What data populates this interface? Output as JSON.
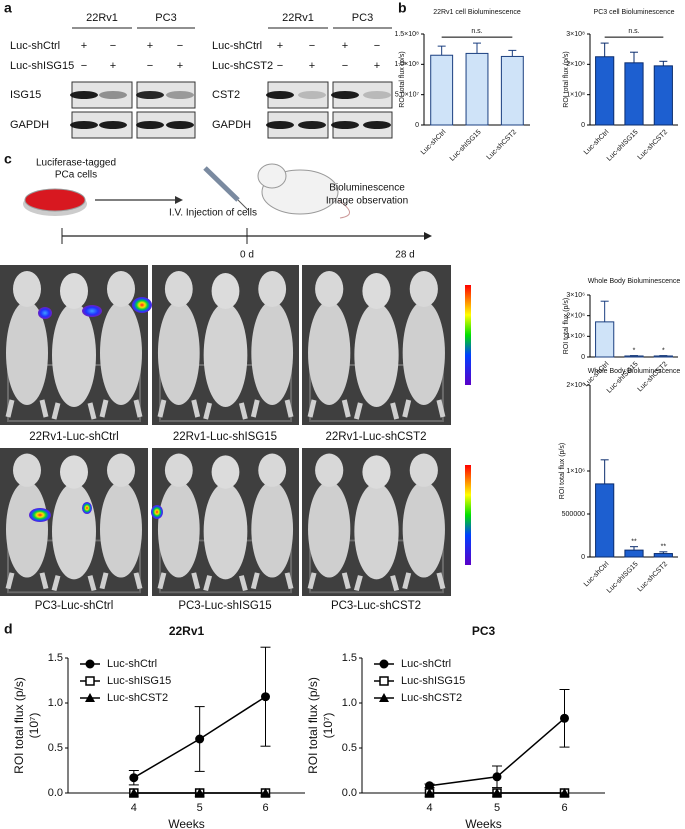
{
  "figure": {
    "panel_labels": [
      "a",
      "b",
      "c",
      "d"
    ],
    "blots": [
      {
        "groups": [
          "22Rv1",
          "PC3"
        ],
        "rows": [
          {
            "name": "Luc-shCtrl",
            "marks": [
              "+",
              "−",
              "+",
              "−"
            ]
          },
          {
            "name": "Luc-shISG15",
            "marks": [
              "−",
              "+",
              "−",
              "+"
            ]
          }
        ],
        "bands": [
          "ISG15",
          "GAPDH"
        ]
      },
      {
        "groups": [
          "22Rv1",
          "PC3"
        ],
        "rows": [
          {
            "name": "Luc-shCtrl",
            "marks": [
              "+",
              "−",
              "+",
              "−"
            ]
          },
          {
            "name": "Luc-shCST2",
            "marks": [
              "−",
              "+",
              "−",
              "+"
            ]
          }
        ],
        "bands": [
          "CST2",
          "GAPDH"
        ]
      }
    ],
    "schematic": {
      "cells": [
        "Luciferase-tagged",
        "PCa cells"
      ],
      "injection": "I.V. Injection of cells",
      "observation": [
        "Bioluminescence",
        "Image observation"
      ],
      "timeline": [
        "0 d",
        "28 d"
      ]
    },
    "image_captions": [
      "22Rv1-Luc-shCtrl",
      "22Rv1-Luc-shISG15",
      "22Rv1-Luc-shCST2",
      "PC3-Luc-shCtrl",
      "PC3-Luc-shISG15",
      "PC3-Luc-shCST2"
    ]
  },
  "chart_data": [
    {
      "type": "bar",
      "title": "22Rv1 cell Bioluminescence",
      "ylabel": "ROI total flux (p/s)",
      "categories": [
        "Luc-shCtrl",
        "Luc-shISG15",
        "Luc-shCST2"
      ],
      "series": [
        {
          "color": "#cfe3f8",
          "edgecolor": "#1b3f80",
          "values": [
            115000000,
            118000000,
            113000000
          ],
          "errors": [
            15000000,
            17000000,
            10000000
          ]
        }
      ],
      "ylim": [
        0,
        150000000
      ],
      "yticks": [
        0,
        {
          "value": 50000000,
          "label": "5.0×10⁷"
        },
        {
          "value": 100000000,
          "label": "1.0×10⁸"
        },
        {
          "value": 150000000,
          "label": "1.5×10⁸"
        }
      ],
      "annotation": "n.s."
    },
    {
      "type": "bar",
      "title": "PC3 cell Bioluminescence",
      "ylabel": "ROI total flux (p/s)",
      "categories": [
        "Luc-shCtrl",
        "Luc-shISG15",
        "Luc-shCST2"
      ],
      "series": [
        {
          "color": "#1d5fd0",
          "edgecolor": "#0b2d6e",
          "values": [
            225000000,
            205000000,
            195000000
          ],
          "errors": [
            45000000,
            35000000,
            15000000
          ]
        }
      ],
      "ylim": [
        0,
        300000000
      ],
      "yticks": [
        0,
        {
          "value": 100000000,
          "label": "1×10⁸"
        },
        {
          "value": 200000000,
          "label": "2×10⁸"
        },
        {
          "value": 300000000,
          "label": "3×10⁸"
        }
      ],
      "annotation": "n.s."
    },
    {
      "type": "bar",
      "title": "Whole Body Bioluminescence",
      "ylabel": "ROI total flux (p/s)",
      "categories": [
        "Luc-shCtrl",
        "Luc-shISG15",
        "Luc-shCST2"
      ],
      "series": [
        {
          "color": "#cfe3f8",
          "edgecolor": "#1b3f80",
          "values": [
            1700000,
            50000,
            50000
          ],
          "errors": [
            1000000,
            20000,
            20000
          ]
        }
      ],
      "ylim": [
        0,
        3000000
      ],
      "yticks": [
        0,
        {
          "value": 1000000,
          "label": "1×10⁶"
        },
        {
          "value": 2000000,
          "label": "2×10⁶"
        },
        {
          "value": 3000000,
          "label": "3×10⁶"
        }
      ],
      "significance": [
        null,
        "*",
        "*"
      ]
    },
    {
      "type": "bar",
      "title": "Whole Body Bioluminescence",
      "ylabel": "ROI total flux (p/s)",
      "categories": [
        "Luc-shCtrl",
        "Luc-shISG15",
        "Luc-shCST2"
      ],
      "series": [
        {
          "color": "#1d5fd0",
          "edgecolor": "#0b2d6e",
          "values": [
            850000,
            80000,
            40000
          ],
          "errors": [
            280000,
            40000,
            20000
          ]
        }
      ],
      "ylim": [
        0,
        2000000
      ],
      "yticks": [
        0,
        500000,
        {
          "value": 1000000,
          "label": "1×10⁶"
        },
        {
          "value": 2000000,
          "label": "2×10⁶"
        }
      ],
      "significance": [
        null,
        "**",
        "**"
      ]
    },
    {
      "type": "line",
      "title": "22Rv1",
      "xlabel": "Weeks",
      "ylabel": "ROI total flux (p/s)",
      "yunit": "(10⁷)",
      "x": [
        4,
        5,
        6
      ],
      "xlim": [
        3,
        6.6
      ],
      "xticks": [
        4,
        5,
        6
      ],
      "ylim": [
        0,
        1.5
      ],
      "yticks": [
        {
          "value": 0,
          "label": "0.0"
        },
        0.5,
        {
          "value": 1,
          "label": "1.0"
        },
        1.5
      ],
      "legend": "upper left",
      "series": [
        {
          "name": "Luc-shCtrl",
          "color": "#000000",
          "marker": "circle",
          "values": [
            0.17,
            0.6,
            1.07
          ],
          "errors": [
            0.08,
            0.36,
            0.55
          ]
        },
        {
          "name": "Luc-shISG15",
          "color": "#000000",
          "marker": "square",
          "values": [
            0,
            0,
            0
          ]
        },
        {
          "name": "Luc-shCST2",
          "color": "#000000",
          "marker": "triangle",
          "values": [
            0,
            0,
            0
          ]
        }
      ]
    },
    {
      "type": "line",
      "title": "PC3",
      "xlabel": "Weeks",
      "ylabel": "ROI total flux (p/s)",
      "yunit": "(10⁷)",
      "x": [
        4,
        5,
        6
      ],
      "xlim": [
        3,
        6.6
      ],
      "xticks": [
        4,
        5,
        6
      ],
      "ylim": [
        0,
        1.5
      ],
      "yticks": [
        {
          "value": 0,
          "label": "0.0"
        },
        0.5,
        {
          "value": 1,
          "label": "1.0"
        },
        1.5
      ],
      "legend": "upper left",
      "series": [
        {
          "name": "Luc-shCtrl",
          "color": "#000000",
          "marker": "circle",
          "values": [
            0.08,
            0.18,
            0.83
          ],
          "errors": [
            0.02,
            0.12,
            0.32
          ]
        },
        {
          "name": "Luc-shISG15",
          "color": "#000000",
          "marker": "square",
          "values": [
            0,
            0,
            0
          ]
        },
        {
          "name": "Luc-shCST2",
          "color": "#000000",
          "marker": "triangle",
          "values": [
            0,
            0,
            0
          ]
        }
      ]
    }
  ]
}
